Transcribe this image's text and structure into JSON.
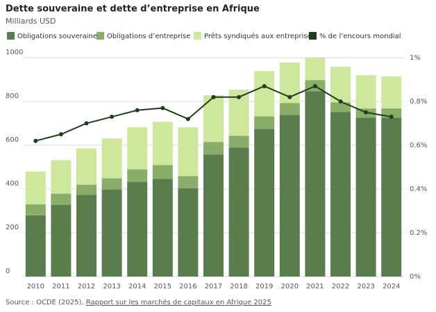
{
  "chart_data": {
    "type": "stacked_bar_line",
    "title": "Dette souveraine et dette d’entreprise en Afrique",
    "subtitle": "Milliards USD",
    "categories": [
      "2010",
      "2011",
      "2012",
      "2013",
      "2014",
      "2015",
      "2016",
      "2017",
      "2018",
      "2019",
      "2020",
      "2021",
      "2022",
      "2023",
      "2024"
    ],
    "series": [
      {
        "name": "Obligations souveraines",
        "color": "#5a7d4e",
        "values": [
          280,
          328,
          373,
          398,
          433,
          446,
          404,
          557,
          589,
          675,
          739,
          847,
          752,
          726,
          726
        ]
      },
      {
        "name": "Obligations d’entreprise",
        "color": "#8aae6a",
        "values": [
          50,
          51,
          47,
          51,
          57,
          64,
          55,
          58,
          54,
          57,
          54,
          51,
          44,
          42,
          42
        ]
      },
      {
        "name": "Prêts syndiqués aux entreprises",
        "color": "#cde89a",
        "values": [
          150,
          153,
          166,
          182,
          192,
          197,
          223,
          213,
          211,
          207,
          185,
          102,
          163,
          152,
          146
        ]
      },
      {
        "name": "% de l’encours mondial",
        "color": "#1e3d1e",
        "axis": "y2",
        "values": [
          0.62,
          0.65,
          0.7,
          0.73,
          0.76,
          0.77,
          0.72,
          0.82,
          0.82,
          0.87,
          0.82,
          0.87,
          0.8,
          0.75,
          0.73
        ]
      }
    ],
    "ylim": [
      0,
      1000
    ],
    "yticks": [
      0,
      200,
      400,
      600,
      800,
      1000
    ],
    "y2lim": [
      0,
      1
    ],
    "y2ticks": [
      {
        "value": 0,
        "label": "0%"
      },
      {
        "value": 0.2,
        "label": "0.2%"
      },
      {
        "value": 0.4,
        "label": "0.4%"
      },
      {
        "value": 0.6,
        "label": "0.6%"
      },
      {
        "value": 0.8,
        "label": "0.8%"
      },
      {
        "value": 1,
        "label": "1%"
      }
    ],
    "grid": true
  },
  "source": {
    "prefix": "Source : OCDE (2025), ",
    "link": "Rapport sur les marchés de capitaux en Afrique 2025"
  }
}
